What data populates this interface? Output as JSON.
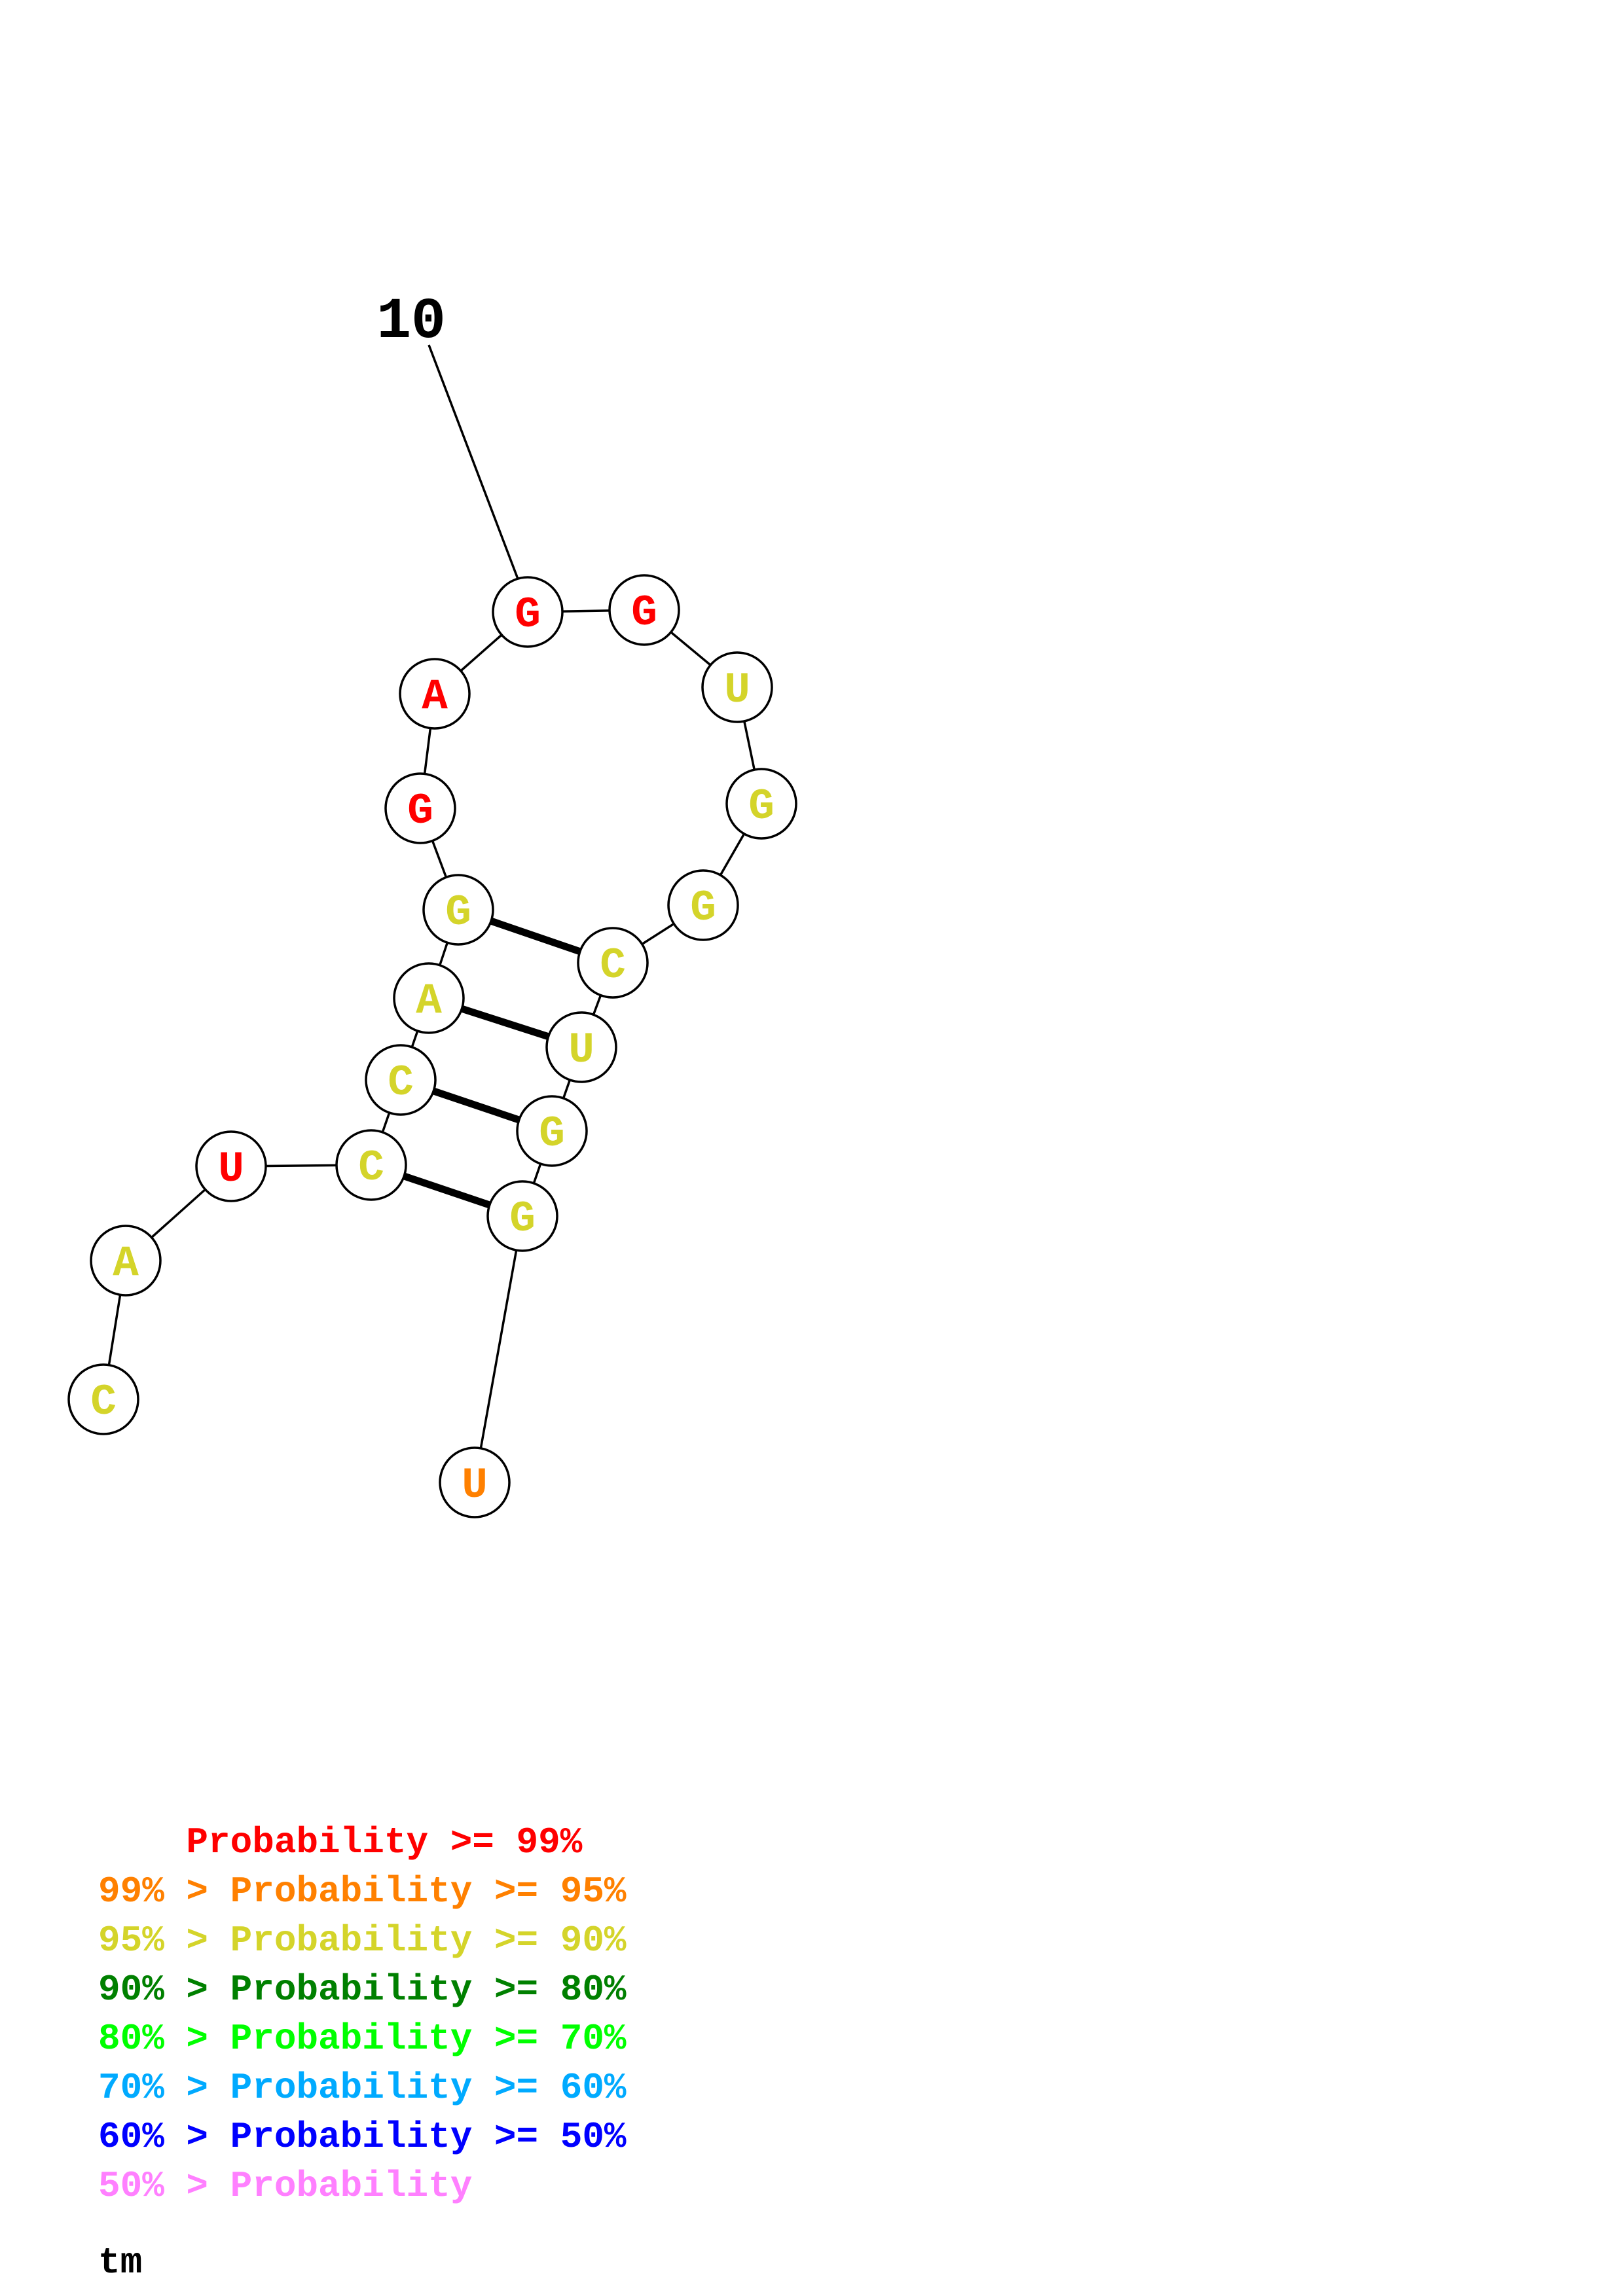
{
  "colors": {
    "p99": "#ff0000",
    "p95": "#ff8000",
    "p90": "#d4d42a",
    "p80": "#008000",
    "p70": "#00ff00",
    "p60": "#00aaff",
    "p50": "#0000ff",
    "plow": "#ff80ff"
  },
  "position_label": "10",
  "nucleotides": [
    {
      "base": "C",
      "prob": "p90"
    },
    {
      "base": "A",
      "prob": "p90"
    },
    {
      "base": "U",
      "prob": "p99"
    },
    {
      "base": "C",
      "prob": "p90"
    },
    {
      "base": "C",
      "prob": "p90"
    },
    {
      "base": "A",
      "prob": "p90"
    },
    {
      "base": "G",
      "prob": "p90"
    },
    {
      "base": "G",
      "prob": "p99"
    },
    {
      "base": "A",
      "prob": "p99"
    },
    {
      "base": "G",
      "prob": "p99"
    },
    {
      "base": "G",
      "prob": "p99"
    },
    {
      "base": "U",
      "prob": "p90"
    },
    {
      "base": "G",
      "prob": "p90"
    },
    {
      "base": "G",
      "prob": "p90"
    },
    {
      "base": "C",
      "prob": "p90"
    },
    {
      "base": "U",
      "prob": "p90"
    },
    {
      "base": "G",
      "prob": "p90"
    },
    {
      "base": "G",
      "prob": "p90"
    },
    {
      "base": "U",
      "prob": "p95"
    }
  ],
  "pairs": [
    [
      3,
      17
    ],
    [
      4,
      16
    ],
    [
      5,
      15
    ],
    [
      6,
      14
    ]
  ],
  "legend": [
    {
      "text": "    Probability >= 99%",
      "prob": "p99"
    },
    {
      "text": "99% > Probability >= 95%",
      "prob": "p95"
    },
    {
      "text": "95% > Probability >= 90%",
      "prob": "p90"
    },
    {
      "text": "90% > Probability >= 80%",
      "prob": "p80"
    },
    {
      "text": "80% > Probability >= 70%",
      "prob": "p70"
    },
    {
      "text": "70% > Probability >= 60%",
      "prob": "p60"
    },
    {
      "text": "60% > Probability >= 50%",
      "prob": "p50"
    },
    {
      "text": "50% > Probability",
      "prob": "plow"
    }
  ],
  "footer_label": "tm"
}
